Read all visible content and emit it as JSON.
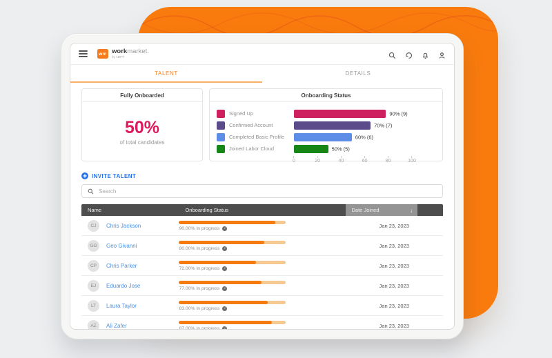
{
  "page": {
    "background": "#ECEEF0",
    "backdrop_orange": "#F97B0D"
  },
  "topbar": {
    "logo_badge": "wm",
    "brand_primary": "work",
    "brand_secondary": "market.",
    "byline": "by ADP®",
    "icons": [
      "search-icon",
      "history-icon",
      "bell-icon",
      "user-icon"
    ]
  },
  "tabs": [
    {
      "label": "TALENT",
      "active": true
    },
    {
      "label": "DETAILS",
      "active": false
    }
  ],
  "fully_onboarded": {
    "title": "Fully Onboarded",
    "percent": "50%",
    "caption": "of total candidates",
    "percent_color": "#E0195E"
  },
  "chart_data": {
    "type": "bar",
    "orientation": "horizontal",
    "title": "Onboarding Status",
    "categories": [
      "Signed Up",
      "Confirmed Account",
      "Completed Basic Profile",
      "Joined Labor Cloud"
    ],
    "values": [
      90,
      70,
      60,
      50
    ],
    "counts": [
      9,
      7,
      6,
      5
    ],
    "value_labels": [
      "90% (9)",
      "70% (7)",
      "60% (6)",
      "50% (5)"
    ],
    "bar_colors": [
      "#CE1F5E",
      "#5C4B8A",
      "#5E8DE8",
      "#168716"
    ],
    "bar_extents": [
      78,
      65,
      49,
      29
    ],
    "xlim": [
      0,
      100
    ],
    "xticks": [
      0,
      20,
      40,
      60,
      80,
      100
    ],
    "grid": false,
    "legend_position": "left"
  },
  "invite": {
    "label": "INVITE TALENT",
    "color": "#2A72E8"
  },
  "search": {
    "placeholder": "Search"
  },
  "table": {
    "columns": [
      "Name",
      "Onboarding Status",
      "Date Joined"
    ],
    "sort": {
      "column": "Date Joined",
      "direction": "desc",
      "icon": "↓"
    },
    "progress_colors": {
      "fill": "#F57B0E",
      "track": "#F6C892"
    },
    "rows": [
      {
        "initials": "CJ",
        "name": "Chris Jackson",
        "progress": 90,
        "progress_label": "90.00% In progress",
        "date": "Jan 23, 2023"
      },
      {
        "initials": "GG",
        "name": "Geo Givanni",
        "progress": 80,
        "progress_label": "80.00% In progress",
        "date": "Jan 23, 2023"
      },
      {
        "initials": "CP",
        "name": "Chris Parker",
        "progress": 72,
        "progress_label": "72.00% In progress",
        "date": "Jan 23, 2023"
      },
      {
        "initials": "EJ",
        "name": "Eduardo Jose",
        "progress": 77,
        "progress_label": "77.00% In progress",
        "date": "Jan 23, 2023"
      },
      {
        "initials": "LT",
        "name": "Laura Taylor",
        "progress": 83,
        "progress_label": "83.00% In progress",
        "date": "Jan 23, 2023"
      },
      {
        "initials": "AZ",
        "name": "Ali Zafer",
        "progress": 87,
        "progress_label": "87.00% In progress",
        "date": "Jan 23, 2023"
      }
    ]
  }
}
